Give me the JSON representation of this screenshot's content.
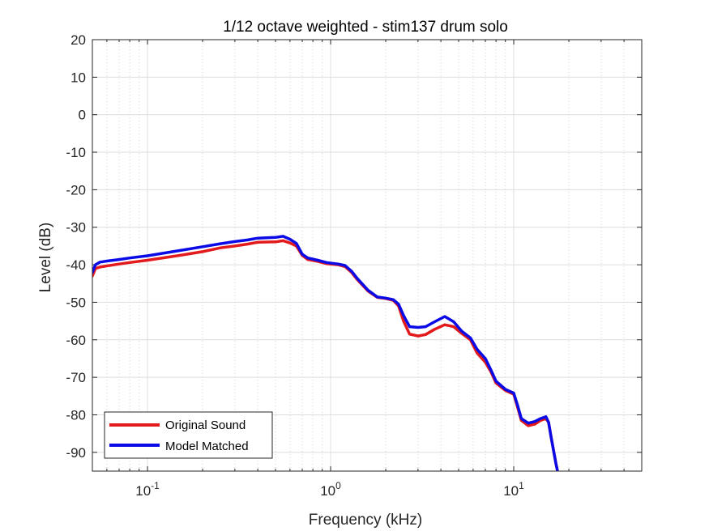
{
  "chart_data": {
    "type": "line",
    "title": "1/12 octave weighted - stim137 drum solo",
    "xlabel": "Frequency (kHz)",
    "ylabel": "Level (dB)",
    "xscale": "log",
    "xlim": [
      0.05,
      50
    ],
    "ylim": [
      -95,
      20
    ],
    "yticks": [
      20,
      10,
      0,
      -10,
      -20,
      -30,
      -40,
      -50,
      -60,
      -70,
      -80,
      -90
    ],
    "xtick_labels": [
      {
        "base": "10",
        "exp": "-1",
        "value": 0.1
      },
      {
        "base": "10",
        "exp": "0",
        "value": 1
      },
      {
        "base": "10",
        "exp": "1",
        "value": 10
      }
    ],
    "grid": true,
    "legend_location": "bottom-left",
    "series": [
      {
        "name": "Original Sound",
        "color": "#e31a1c",
        "points": [
          [
            0.05,
            -43
          ],
          [
            0.052,
            -41
          ],
          [
            0.055,
            -40.6
          ],
          [
            0.06,
            -40.3
          ],
          [
            0.07,
            -39.8
          ],
          [
            0.08,
            -39.4
          ],
          [
            0.1,
            -38.8
          ],
          [
            0.15,
            -37.5
          ],
          [
            0.2,
            -36.5
          ],
          [
            0.25,
            -35.5
          ],
          [
            0.3,
            -35
          ],
          [
            0.35,
            -34.5
          ],
          [
            0.4,
            -34
          ],
          [
            0.5,
            -33.9
          ],
          [
            0.55,
            -33.6
          ],
          [
            0.6,
            -34.2
          ],
          [
            0.65,
            -35
          ],
          [
            0.7,
            -37.5
          ],
          [
            0.75,
            -38.6
          ],
          [
            0.85,
            -39.1
          ],
          [
            0.95,
            -39.7
          ],
          [
            1.1,
            -40
          ],
          [
            1.2,
            -40.5
          ],
          [
            1.3,
            -42
          ],
          [
            1.4,
            -44
          ],
          [
            1.6,
            -47
          ],
          [
            1.8,
            -48.7
          ],
          [
            2.0,
            -49
          ],
          [
            2.2,
            -49.5
          ],
          [
            2.35,
            -51
          ],
          [
            2.5,
            -55
          ],
          [
            2.7,
            -58.5
          ],
          [
            3.0,
            -59
          ],
          [
            3.3,
            -58.6
          ],
          [
            3.7,
            -57.2
          ],
          [
            4.2,
            -56
          ],
          [
            4.7,
            -56.5
          ],
          [
            5.2,
            -58.3
          ],
          [
            5.8,
            -60
          ],
          [
            6.3,
            -63.5
          ],
          [
            7.0,
            -66
          ],
          [
            7.5,
            -68.5
          ],
          [
            8.0,
            -71.5
          ],
          [
            9.0,
            -73.5
          ],
          [
            10.0,
            -74.5
          ],
          [
            10.5,
            -78
          ],
          [
            11.0,
            -81.5
          ],
          [
            12.0,
            -82.9
          ],
          [
            13.0,
            -82.5
          ],
          [
            14.0,
            -81.5
          ],
          [
            15.0,
            -81
          ],
          [
            15.5,
            -82
          ],
          [
            16.0,
            -86
          ],
          [
            17.0,
            -93
          ],
          [
            17.5,
            -96
          ]
        ]
      },
      {
        "name": "Model Matched",
        "color": "#0a0ae6",
        "points": [
          [
            0.05,
            -42
          ],
          [
            0.052,
            -40
          ],
          [
            0.055,
            -39.3
          ],
          [
            0.06,
            -39
          ],
          [
            0.07,
            -38.6
          ],
          [
            0.08,
            -38.2
          ],
          [
            0.1,
            -37.6
          ],
          [
            0.15,
            -36.2
          ],
          [
            0.2,
            -35.2
          ],
          [
            0.25,
            -34.4
          ],
          [
            0.3,
            -33.8
          ],
          [
            0.35,
            -33.4
          ],
          [
            0.4,
            -32.9
          ],
          [
            0.5,
            -32.7
          ],
          [
            0.55,
            -32.4
          ],
          [
            0.6,
            -33.2
          ],
          [
            0.65,
            -34.3
          ],
          [
            0.7,
            -37.2
          ],
          [
            0.75,
            -38.2
          ],
          [
            0.85,
            -38.8
          ],
          [
            0.95,
            -39.4
          ],
          [
            1.1,
            -39.8
          ],
          [
            1.2,
            -40.2
          ],
          [
            1.3,
            -41.7
          ],
          [
            1.4,
            -43.7
          ],
          [
            1.6,
            -46.8
          ],
          [
            1.8,
            -48.6
          ],
          [
            2.0,
            -48.9
          ],
          [
            2.2,
            -49.3
          ],
          [
            2.35,
            -50.5
          ],
          [
            2.5,
            -53.5
          ],
          [
            2.7,
            -56.5
          ],
          [
            3.0,
            -56.7
          ],
          [
            3.3,
            -56.5
          ],
          [
            3.7,
            -55.2
          ],
          [
            4.2,
            -53.8
          ],
          [
            4.7,
            -55.2
          ],
          [
            5.2,
            -57.7
          ],
          [
            5.8,
            -59.5
          ],
          [
            6.3,
            -62.5
          ],
          [
            7.0,
            -65
          ],
          [
            7.5,
            -68
          ],
          [
            8.0,
            -71
          ],
          [
            9.0,
            -73.2
          ],
          [
            10.0,
            -74.2
          ],
          [
            10.5,
            -77.5
          ],
          [
            11.0,
            -81
          ],
          [
            12.0,
            -82.2
          ],
          [
            13.0,
            -81.8
          ],
          [
            14.0,
            -81
          ],
          [
            15.0,
            -80.5
          ],
          [
            15.5,
            -82
          ],
          [
            16.0,
            -86
          ],
          [
            17.0,
            -93
          ],
          [
            17.5,
            -96
          ]
        ]
      }
    ]
  }
}
